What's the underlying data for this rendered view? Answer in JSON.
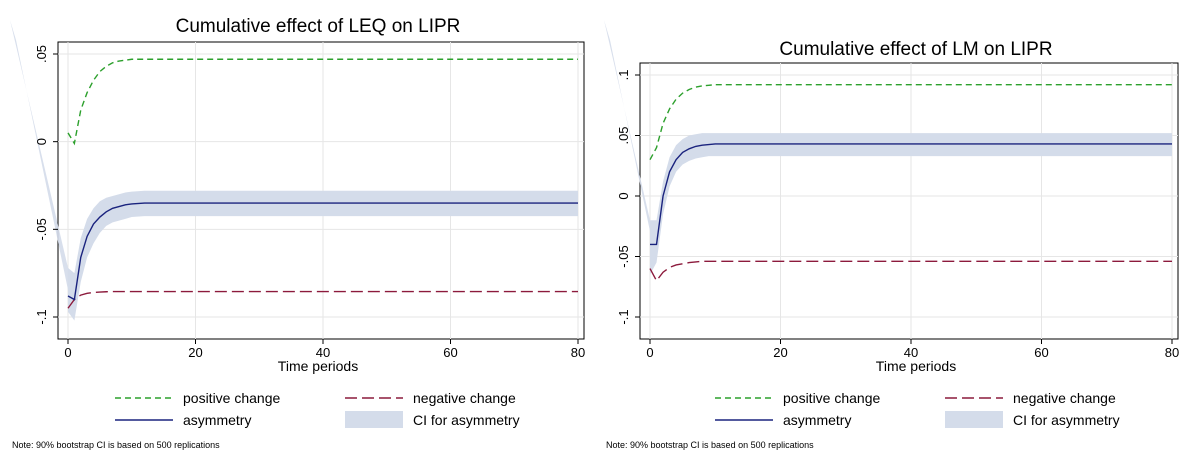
{
  "chart_data": [
    {
      "type": "line",
      "title": "Cumulative effect of LEQ on LIPR",
      "xlabel": "Time periods",
      "ylabel": "",
      "xlim": [
        0,
        80
      ],
      "ylim": [
        -0.1,
        0.05
      ],
      "xticks": [
        0,
        20,
        40,
        60,
        80
      ],
      "xtick_labels": [
        "0",
        "20",
        "40",
        "60",
        "80"
      ],
      "yticks": [
        -0.1,
        -0.05,
        0,
        0.05
      ],
      "ytick_labels": [
        "-.1",
        "-.05",
        "0",
        ".05"
      ],
      "grid": true,
      "legend_position": "bottom",
      "x": [
        0,
        1,
        2,
        3,
        4,
        5,
        6,
        7,
        8,
        9,
        10,
        12,
        15,
        20,
        30,
        40,
        50,
        60,
        70,
        80
      ],
      "series": [
        {
          "name": "positive change",
          "style": "dashed-short",
          "color": "#2ca02c",
          "values": [
            0.005,
            -0.001,
            0.018,
            0.028,
            0.035,
            0.04,
            0.043,
            0.045,
            0.046,
            0.0465,
            0.047,
            0.047,
            0.047,
            0.047,
            0.047,
            0.047,
            0.047,
            0.047,
            0.047,
            0.047
          ]
        },
        {
          "name": "negative change",
          "style": "dashed-long",
          "color": "#8c1a3c",
          "values": [
            -0.095,
            -0.09,
            -0.0875,
            -0.0865,
            -0.086,
            -0.0858,
            -0.0856,
            -0.0855,
            -0.0855,
            -0.0855,
            -0.0855,
            -0.0855,
            -0.0855,
            -0.0855,
            -0.0855,
            -0.0855,
            -0.0855,
            -0.0855,
            -0.0855,
            -0.0855
          ]
        },
        {
          "name": "asymmetry",
          "style": "solid",
          "color": "#1a237e",
          "values": [
            -0.088,
            -0.09,
            -0.066,
            -0.054,
            -0.047,
            -0.043,
            -0.04,
            -0.038,
            -0.037,
            -0.036,
            -0.0355,
            -0.035,
            -0.035,
            -0.035,
            -0.035,
            -0.035,
            -0.035,
            -0.035,
            -0.035,
            -0.035
          ]
        },
        {
          "name": "CI for asymmetry",
          "style": "band",
          "color": "#d4dcea",
          "lower": [
            -0.097,
            -0.102,
            -0.08,
            -0.066,
            -0.058,
            -0.052,
            -0.048,
            -0.046,
            -0.045,
            -0.044,
            -0.043,
            -0.0425,
            -0.0425,
            -0.0425,
            -0.0425,
            -0.0425,
            -0.0425,
            -0.0425,
            -0.0425,
            -0.0425
          ],
          "upper": [
            -0.072,
            -0.075,
            -0.055,
            -0.044,
            -0.038,
            -0.034,
            -0.032,
            -0.031,
            -0.03,
            -0.029,
            -0.0285,
            -0.028,
            -0.028,
            -0.028,
            -0.028,
            -0.028,
            -0.028,
            -0.028,
            -0.028,
            -0.028
          ]
        }
      ],
      "note": "Note: 90% bootstrap CI is based on 500 replications"
    },
    {
      "type": "line",
      "title": "Cumulative effect of LM on LIPR",
      "xlabel": "Time periods",
      "ylabel": "",
      "xlim": [
        0,
        80
      ],
      "ylim": [
        -0.1,
        0.1
      ],
      "xticks": [
        0,
        20,
        40,
        60,
        80
      ],
      "xtick_labels": [
        "0",
        "20",
        "40",
        "60",
        "80"
      ],
      "yticks": [
        -0.1,
        -0.05,
        0,
        0.05,
        0.1
      ],
      "ytick_labels": [
        "-.1",
        "-.05",
        "0",
        ".05",
        ".1"
      ],
      "grid": true,
      "legend_position": "bottom",
      "x": [
        0,
        1,
        2,
        3,
        4,
        5,
        6,
        7,
        8,
        9,
        10,
        12,
        15,
        20,
        30,
        40,
        50,
        60,
        70,
        80
      ],
      "series": [
        {
          "name": "positive change",
          "style": "dashed-short",
          "color": "#2ca02c",
          "values": [
            0.03,
            0.04,
            0.06,
            0.072,
            0.08,
            0.085,
            0.088,
            0.09,
            0.091,
            0.0915,
            0.092,
            0.092,
            0.092,
            0.092,
            0.092,
            0.092,
            0.092,
            0.092,
            0.092,
            0.092
          ]
        },
        {
          "name": "negative change",
          "style": "dashed-long",
          "color": "#8c1a3c",
          "values": [
            -0.06,
            -0.07,
            -0.063,
            -0.059,
            -0.057,
            -0.056,
            -0.055,
            -0.0545,
            -0.054,
            -0.054,
            -0.054,
            -0.054,
            -0.054,
            -0.054,
            -0.054,
            -0.054,
            -0.054,
            -0.054,
            -0.054,
            -0.054
          ]
        },
        {
          "name": "asymmetry",
          "style": "solid",
          "color": "#1a237e",
          "values": [
            -0.04,
            -0.04,
            0.0,
            0.02,
            0.03,
            0.036,
            0.039,
            0.041,
            0.042,
            0.0425,
            0.043,
            0.043,
            0.043,
            0.043,
            0.043,
            0.043,
            0.043,
            0.043,
            0.043,
            0.043
          ]
        },
        {
          "name": "CI for asymmetry",
          "style": "band",
          "color": "#d4dcea",
          "lower": [
            -0.065,
            -0.055,
            -0.015,
            0.008,
            0.02,
            0.026,
            0.029,
            0.031,
            0.032,
            0.033,
            0.033,
            0.033,
            0.033,
            0.033,
            0.033,
            0.033,
            0.033,
            0.033,
            0.033,
            0.033
          ],
          "upper": [
            -0.02,
            -0.02,
            0.012,
            0.032,
            0.042,
            0.047,
            0.05,
            0.051,
            0.052,
            0.052,
            0.052,
            0.052,
            0.052,
            0.052,
            0.052,
            0.052,
            0.052,
            0.052,
            0.052,
            0.052
          ]
        }
      ],
      "note": "Note: 90% bootstrap CI is based on 500 replications"
    }
  ]
}
